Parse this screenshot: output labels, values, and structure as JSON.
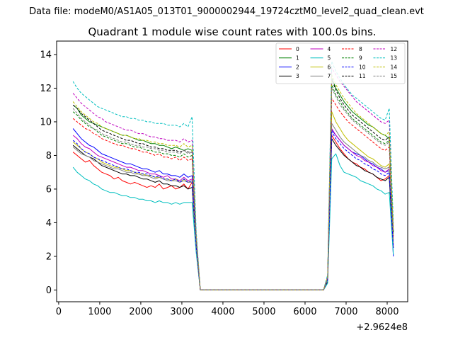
{
  "figure": {
    "suptitle": "Data file: modeM0/AS1A05_013T01_9000002944_19724cztM0_level2_quad_clean.evt"
  },
  "chart_data": {
    "type": "line",
    "title": "Quadrant 1 module wise count rates with 100.0s bins.",
    "xlabel": "",
    "ylabel": "",
    "x_offset_label": "+2.9624e8",
    "xlim": [
      -50,
      8500
    ],
    "ylim": [
      -0.7,
      14.8
    ],
    "x_ticks": [
      0,
      1000,
      2000,
      3000,
      4000,
      5000,
      6000,
      7000,
      8000
    ],
    "y_ticks": [
      0,
      2,
      4,
      6,
      8,
      10,
      12,
      14
    ],
    "x_tick_labels": [
      "0",
      "1000",
      "2000",
      "3000",
      "4000",
      "5000",
      "6000",
      "7000",
      "8000"
    ],
    "y_tick_labels": [
      "0",
      "2",
      "4",
      "6",
      "8",
      "10",
      "12",
      "14"
    ],
    "legend_position": "top-right",
    "x": [
      350,
      450,
      550,
      650,
      750,
      850,
      950,
      1050,
      1150,
      1250,
      1350,
      1450,
      1550,
      1650,
      1750,
      1850,
      1950,
      2050,
      2150,
      2250,
      2350,
      2450,
      2550,
      2650,
      2750,
      2850,
      2950,
      3050,
      3150,
      3250,
      3350,
      3450,
      3550,
      6450,
      6550,
      6650,
      6750,
      6850,
      6950,
      7050,
      7150,
      7250,
      7350,
      7450,
      7550,
      7650,
      7750,
      7850,
      7950,
      8050,
      8150
    ],
    "series": [
      {
        "name": "0",
        "color": "#ff0000",
        "dash": "solid",
        "values": [
          8.2,
          8.0,
          7.8,
          7.6,
          7.7,
          7.4,
          7.2,
          7.0,
          6.9,
          6.8,
          6.6,
          6.7,
          6.5,
          6.4,
          6.3,
          6.4,
          6.3,
          6.2,
          6.1,
          6.2,
          6.1,
          6.3,
          6.0,
          6.1,
          6.2,
          6.0,
          6.1,
          6.3,
          6.0,
          6.4,
          2.5,
          0.0,
          0.0,
          0.0,
          0.5,
          9.2,
          8.8,
          8.4,
          8.1,
          7.8,
          7.6,
          7.5,
          7.3,
          7.2,
          7.0,
          6.9,
          6.7,
          6.5,
          6.6,
          6.8,
          3.0
        ]
      },
      {
        "name": "1",
        "color": "#008000",
        "dash": "solid",
        "values": [
          11.0,
          10.8,
          10.4,
          10.2,
          10.0,
          9.9,
          9.8,
          9.7,
          9.6,
          9.5,
          9.4,
          9.3,
          9.2,
          9.2,
          9.1,
          9.0,
          8.9,
          8.9,
          8.8,
          8.7,
          8.7,
          8.6,
          8.6,
          8.5,
          8.4,
          8.5,
          8.4,
          8.3,
          8.4,
          8.3,
          3.0,
          0.0,
          0.0,
          0.0,
          0.8,
          12.6,
          12.0,
          11.6,
          11.2,
          10.9,
          10.6,
          10.4,
          10.2,
          10.0,
          9.8,
          9.7,
          9.5,
          9.3,
          9.2,
          9.0,
          3.5
        ]
      },
      {
        "name": "2",
        "color": "#0000ff",
        "dash": "solid",
        "values": [
          9.6,
          9.3,
          9.0,
          8.8,
          8.6,
          8.5,
          8.3,
          8.1,
          8.0,
          7.9,
          7.8,
          7.7,
          7.6,
          7.5,
          7.5,
          7.4,
          7.3,
          7.2,
          7.2,
          7.1,
          7.0,
          7.1,
          6.9,
          6.9,
          6.8,
          6.8,
          6.7,
          6.9,
          6.7,
          6.8,
          2.7,
          0.0,
          0.0,
          0.0,
          0.6,
          9.5,
          9.2,
          8.9,
          8.6,
          8.4,
          8.2,
          8.1,
          8.0,
          7.8,
          7.6,
          7.5,
          7.3,
          7.2,
          7.0,
          7.1,
          2.0
        ]
      },
      {
        "name": "3",
        "color": "#000000",
        "dash": "solid",
        "values": [
          8.6,
          8.4,
          8.2,
          8.0,
          7.9,
          7.8,
          7.6,
          7.4,
          7.3,
          7.2,
          7.1,
          7.0,
          6.9,
          6.9,
          6.8,
          6.8,
          6.7,
          6.6,
          6.6,
          6.5,
          6.4,
          6.5,
          6.3,
          6.3,
          6.2,
          6.2,
          6.1,
          6.2,
          6.0,
          6.1,
          2.4,
          0.0,
          0.0,
          0.0,
          0.5,
          9.0,
          8.6,
          8.3,
          8.0,
          7.8,
          7.6,
          7.4,
          7.3,
          7.1,
          7.0,
          6.9,
          6.7,
          6.6,
          6.5,
          6.7,
          2.5
        ]
      },
      {
        "name": "4",
        "color": "#bf00bf",
        "dash": "solid",
        "values": [
          9.2,
          9.0,
          8.7,
          8.5,
          8.4,
          8.2,
          8.0,
          7.9,
          7.8,
          7.7,
          7.6,
          7.5,
          7.4,
          7.3,
          7.3,
          7.2,
          7.1,
          7.1,
          7.0,
          6.9,
          6.9,
          6.8,
          6.7,
          6.8,
          6.6,
          6.6,
          6.5,
          6.7,
          6.5,
          6.6,
          2.6,
          0.0,
          0.0,
          0.0,
          0.6,
          9.6,
          9.2,
          8.9,
          8.6,
          8.4,
          8.2,
          8.0,
          7.9,
          7.7,
          7.6,
          7.4,
          7.3,
          7.1,
          7.0,
          7.2,
          2.6
        ]
      },
      {
        "name": "5",
        "color": "#00bfbf",
        "dash": "solid",
        "values": [
          7.3,
          7.0,
          6.8,
          6.6,
          6.5,
          6.3,
          6.2,
          6.0,
          5.9,
          5.8,
          5.8,
          5.7,
          5.6,
          5.6,
          5.5,
          5.5,
          5.4,
          5.4,
          5.3,
          5.3,
          5.2,
          5.3,
          5.2,
          5.2,
          5.1,
          5.2,
          5.1,
          5.2,
          5.2,
          5.2,
          2.2,
          0.0,
          0.0,
          0.0,
          0.4,
          7.8,
          8.1,
          7.4,
          7.0,
          6.9,
          6.8,
          6.7,
          6.5,
          6.4,
          6.3,
          6.2,
          6.0,
          5.9,
          5.7,
          5.8,
          2.1
        ]
      },
      {
        "name": "6",
        "color": "#bfbf00",
        "dash": "solid",
        "values": [
          8.8,
          8.6,
          8.4,
          8.2,
          8.1,
          7.9,
          7.8,
          7.6,
          7.5,
          7.4,
          7.3,
          7.3,
          7.2,
          7.1,
          7.1,
          7.0,
          6.9,
          6.9,
          6.8,
          6.8,
          6.7,
          6.7,
          6.6,
          6.6,
          6.5,
          6.6,
          6.4,
          6.6,
          6.4,
          6.5,
          2.6,
          0.0,
          0.0,
          0.0,
          0.6,
          10.6,
          10.0,
          9.6,
          9.2,
          8.9,
          8.7,
          8.5,
          8.3,
          8.1,
          7.9,
          7.8,
          7.6,
          7.4,
          7.3,
          7.5,
          2.8
        ]
      },
      {
        "name": "7",
        "color": "#808080",
        "dash": "solid",
        "values": [
          8.5,
          8.3,
          8.1,
          8.0,
          7.9,
          7.7,
          7.6,
          7.5,
          7.4,
          7.3,
          7.2,
          7.2,
          7.1,
          7.0,
          7.0,
          6.9,
          6.9,
          6.8,
          6.8,
          6.7,
          6.6,
          6.7,
          6.6,
          6.5,
          6.5,
          6.5,
          6.4,
          6.5,
          6.4,
          6.4,
          2.5,
          0.0,
          0.0,
          0.0,
          0.6,
          9.9,
          9.5,
          9.1,
          8.8,
          8.6,
          8.4,
          8.2,
          8.0,
          7.9,
          7.7,
          7.6,
          7.4,
          7.3,
          7.2,
          7.3,
          2.7
        ]
      },
      {
        "name": "8",
        "color": "#ff0000",
        "dash": "dashed",
        "values": [
          10.2,
          10.0,
          9.8,
          9.6,
          9.5,
          9.3,
          9.2,
          9.0,
          8.9,
          8.8,
          8.7,
          8.6,
          8.6,
          8.5,
          8.4,
          8.4,
          8.3,
          8.2,
          8.2,
          8.1,
          8.0,
          8.1,
          7.9,
          7.9,
          7.8,
          7.9,
          7.7,
          7.9,
          7.7,
          7.8,
          3.0,
          0.0,
          0.0,
          0.0,
          0.7,
          11.4,
          11.0,
          10.6,
          10.3,
          10.0,
          9.8,
          9.6,
          9.4,
          9.2,
          9.0,
          8.8,
          8.6,
          8.4,
          8.3,
          8.5,
          3.2
        ]
      },
      {
        "name": "9",
        "color": "#008000",
        "dash": "dashed",
        "values": [
          10.6,
          10.4,
          10.1,
          9.9,
          9.7,
          9.6,
          9.4,
          9.2,
          9.1,
          9.0,
          8.9,
          8.8,
          8.7,
          8.7,
          8.6,
          8.5,
          8.5,
          8.4,
          8.3,
          8.3,
          8.2,
          8.2,
          8.1,
          8.1,
          8.0,
          8.0,
          7.9,
          8.1,
          7.9,
          8.0,
          3.1,
          0.0,
          0.0,
          0.0,
          0.8,
          12.2,
          11.6,
          11.2,
          10.8,
          10.5,
          10.2,
          10.0,
          9.8,
          9.6,
          9.4,
          9.2,
          9.0,
          8.8,
          8.7,
          8.9,
          3.4
        ]
      },
      {
        "name": "10",
        "color": "#0000ff",
        "dash": "dashed",
        "values": [
          8.9,
          8.7,
          8.4,
          8.2,
          8.1,
          7.9,
          7.8,
          7.7,
          7.6,
          7.5,
          7.4,
          7.3,
          7.2,
          7.2,
          7.1,
          7.0,
          7.0,
          6.9,
          6.9,
          6.8,
          6.7,
          6.8,
          6.6,
          6.6,
          6.5,
          6.6,
          6.4,
          6.6,
          6.4,
          6.5,
          2.6,
          0.0,
          0.0,
          0.0,
          0.6,
          9.4,
          9.0,
          8.7,
          8.4,
          8.2,
          8.0,
          7.8,
          7.7,
          7.5,
          7.4,
          7.2,
          7.1,
          6.9,
          6.8,
          7.0,
          2.5
        ]
      },
      {
        "name": "11",
        "color": "#000000",
        "dash": "dashed",
        "values": [
          11.0,
          10.8,
          10.5,
          10.3,
          10.1,
          9.9,
          9.7,
          9.5,
          9.4,
          9.3,
          9.2,
          9.1,
          9.0,
          8.9,
          8.9,
          8.8,
          8.7,
          8.7,
          8.6,
          8.5,
          8.5,
          8.4,
          8.4,
          8.3,
          8.3,
          8.3,
          8.2,
          8.3,
          8.2,
          8.2,
          3.1,
          0.0,
          0.0,
          0.0,
          0.8,
          12.5,
          11.9,
          11.4,
          11.0,
          10.7,
          10.4,
          10.2,
          10.0,
          9.8,
          9.6,
          9.4,
          9.2,
          9.0,
          8.9,
          9.1,
          3.5
        ]
      },
      {
        "name": "12",
        "color": "#bf00bf",
        "dash": "dashed",
        "values": [
          11.7,
          11.4,
          11.1,
          10.9,
          10.7,
          10.5,
          10.3,
          10.2,
          10.0,
          9.9,
          9.8,
          9.7,
          9.6,
          9.5,
          9.5,
          9.4,
          9.3,
          9.3,
          9.2,
          9.1,
          9.1,
          9.0,
          9.0,
          8.9,
          8.9,
          8.9,
          8.8,
          9.0,
          8.8,
          8.9,
          3.3,
          0.0,
          0.0,
          0.0,
          0.8,
          13.2,
          12.8,
          12.4,
          12.1,
          11.8,
          11.5,
          11.2,
          11.0,
          10.8,
          10.6,
          10.4,
          10.2,
          10.0,
          9.9,
          10.1,
          3.8
        ]
      },
      {
        "name": "13",
        "color": "#00bfbf",
        "dash": "dashed",
        "values": [
          12.4,
          12.0,
          11.7,
          11.5,
          11.3,
          11.1,
          10.9,
          10.8,
          10.7,
          10.6,
          10.5,
          10.4,
          10.3,
          10.3,
          10.2,
          10.2,
          10.1,
          10.1,
          10.0,
          10.0,
          9.9,
          9.9,
          9.9,
          9.8,
          9.8,
          9.8,
          9.7,
          9.9,
          9.7,
          10.3,
          3.5,
          0.0,
          0.0,
          0.0,
          0.9,
          13.6,
          13.0,
          12.6,
          12.2,
          11.9,
          11.6,
          11.4,
          11.2,
          11.0,
          10.8,
          10.6,
          10.4,
          10.2,
          10.1,
          10.8,
          4.0
        ]
      },
      {
        "name": "14",
        "color": "#bfbf00",
        "dash": "dashed",
        "values": [
          11.2,
          10.9,
          10.6,
          10.4,
          10.2,
          10.0,
          9.9,
          9.7,
          9.6,
          9.5,
          9.4,
          9.3,
          9.2,
          9.2,
          9.1,
          9.0,
          9.0,
          8.9,
          8.9,
          8.8,
          8.8,
          8.7,
          8.7,
          8.6,
          8.6,
          8.6,
          8.5,
          8.7,
          8.5,
          8.6,
          3.2,
          0.0,
          0.0,
          0.0,
          0.8,
          12.8,
          12.2,
          11.8,
          11.4,
          11.1,
          10.8,
          10.5,
          10.3,
          10.1,
          9.9,
          9.7,
          9.5,
          9.3,
          9.2,
          9.4,
          3.6
        ]
      },
      {
        "name": "15",
        "color": "#808080",
        "dash": "dashed",
        "values": [
          10.8,
          10.5,
          10.2,
          10.0,
          9.8,
          9.6,
          9.5,
          9.3,
          9.2,
          9.1,
          9.0,
          8.9,
          8.8,
          8.8,
          8.7,
          8.6,
          8.6,
          8.5,
          8.5,
          8.4,
          8.4,
          8.3,
          8.3,
          8.2,
          8.2,
          8.2,
          8.1,
          8.3,
          8.1,
          8.2,
          3.1,
          0.0,
          0.0,
          0.0,
          0.7,
          12.0,
          11.5,
          11.0,
          10.7,
          10.4,
          10.1,
          9.9,
          9.7,
          9.5,
          9.3,
          9.1,
          8.9,
          8.7,
          8.6,
          8.8,
          3.3
        ]
      }
    ]
  }
}
